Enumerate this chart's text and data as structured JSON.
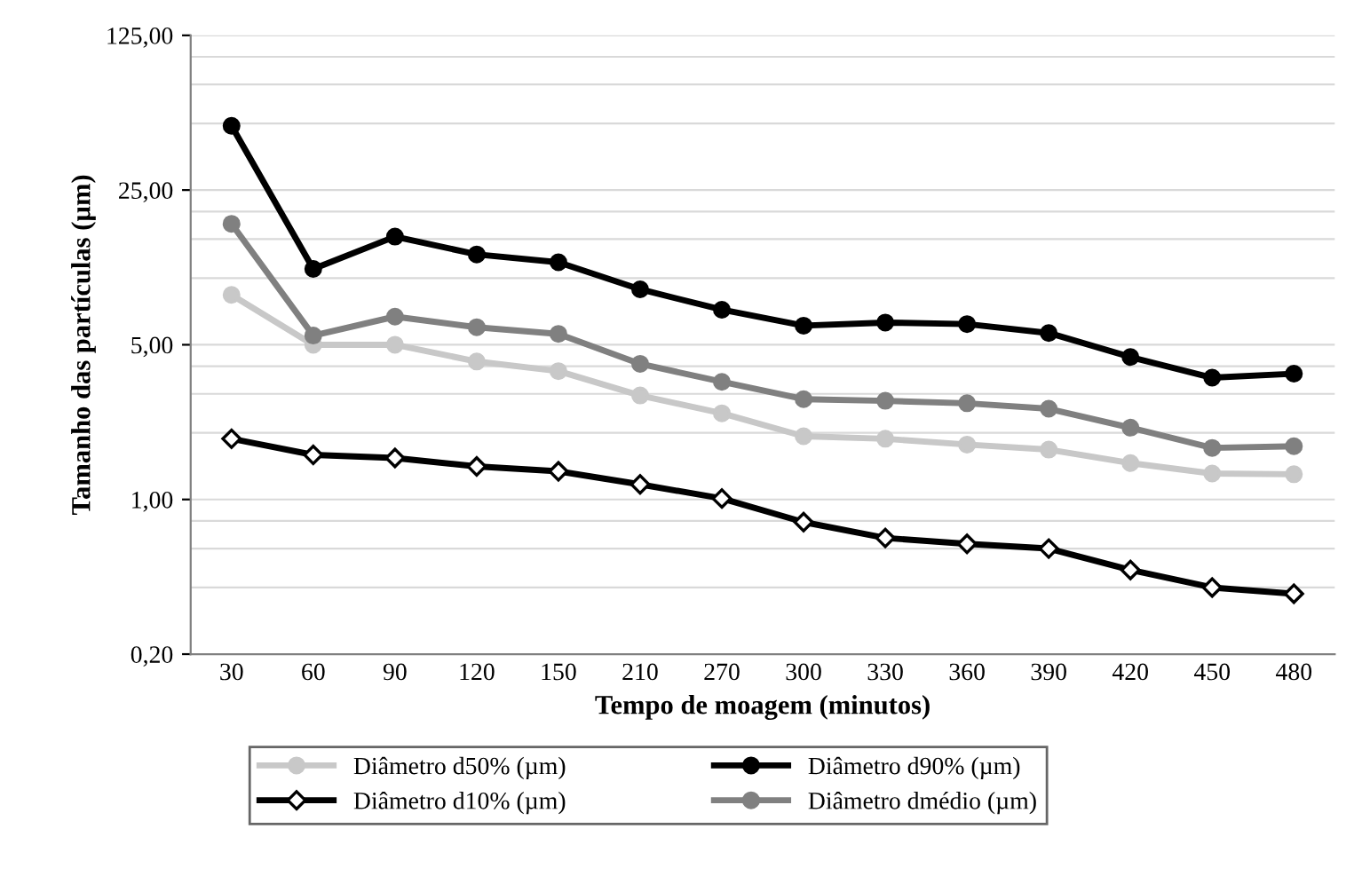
{
  "chart_data": {
    "type": "line",
    "xlabel": "Tempo de moagem (minutos)",
    "ylabel": "Tamanho das partículas (µm)",
    "categories": [
      "30",
      "60",
      "90",
      "120",
      "150",
      "210",
      "270",
      "300",
      "330",
      "360",
      "390",
      "420",
      "450",
      "480"
    ],
    "log": "y",
    "ylim": [
      0.2,
      125
    ],
    "yticks": [
      {
        "value": 0.2,
        "label": "0,20"
      },
      {
        "value": 1,
        "label": "1,00"
      },
      {
        "value": 5,
        "label": "5,00"
      },
      {
        "value": 25,
        "label": "25,00"
      },
      {
        "value": 125,
        "label": "125,00"
      }
    ],
    "grid": "y",
    "legend": "bottom",
    "series": [
      {
        "name": "Diâmetro d50% (µm)",
        "color": "#c8c8c8",
        "marker": "circle",
        "values": [
          8.4,
          5.0,
          5.0,
          4.2,
          3.8,
          2.95,
          2.45,
          1.93,
          1.88,
          1.77,
          1.68,
          1.46,
          1.31,
          1.3
        ]
      },
      {
        "name": "Diâmetro d10% (µm)",
        "color": "#000000",
        "marker": "diamond",
        "values": [
          1.88,
          1.59,
          1.54,
          1.41,
          1.34,
          1.17,
          1.01,
          0.79,
          0.67,
          0.63,
          0.6,
          0.48,
          0.4,
          0.375
        ]
      },
      {
        "name": "Diâmetro d90% (µm)",
        "color": "#000000",
        "marker": "circle",
        "values": [
          48.8,
          11.0,
          15.4,
          12.8,
          11.8,
          8.9,
          7.2,
          6.1,
          6.3,
          6.2,
          5.65,
          4.4,
          3.55,
          3.7
        ]
      },
      {
        "name": "Diâmetro dmédio (µm)",
        "color": "#808080",
        "marker": "circle",
        "values": [
          17.6,
          5.5,
          6.7,
          6.0,
          5.6,
          4.1,
          3.4,
          2.84,
          2.79,
          2.72,
          2.57,
          2.11,
          1.71,
          1.74
        ]
      }
    ]
  }
}
